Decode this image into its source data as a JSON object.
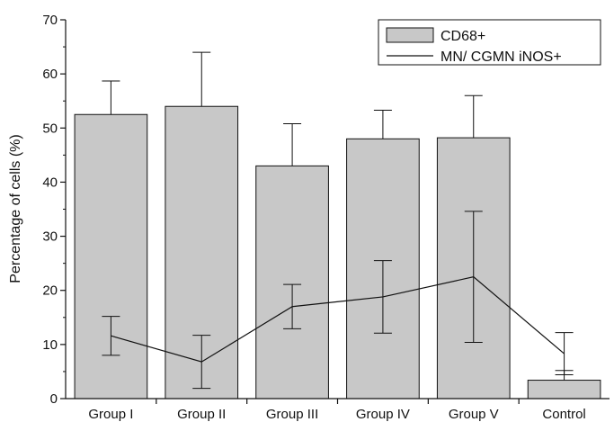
{
  "chart_data": {
    "type": "bar",
    "categories": [
      "Group I",
      "Group II",
      "Group III",
      "Group IV",
      "Group V",
      "Control"
    ],
    "ylabel": "Percentage of cells (%)",
    "xlabel": "",
    "ylim": [
      0,
      70
    ],
    "yticks": [
      0,
      10,
      20,
      30,
      40,
      50,
      60,
      70
    ],
    "grid": false,
    "legend_position": "top-right",
    "series": [
      {
        "name": "CD68+",
        "kind": "bar",
        "values": [
          52.5,
          54.0,
          43.0,
          48.0,
          48.2,
          3.4
        ],
        "error": [
          6.2,
          10.0,
          7.8,
          5.3,
          7.8,
          1.8
        ],
        "color": "#c8c8c8"
      },
      {
        "name": "MN/ CGMN iNOS+",
        "kind": "line",
        "values": [
          11.6,
          6.8,
          17.0,
          18.8,
          22.5,
          8.3
        ],
        "error": [
          3.6,
          4.9,
          4.1,
          6.7,
          12.1,
          3.9
        ],
        "color": "#111111"
      }
    ]
  }
}
